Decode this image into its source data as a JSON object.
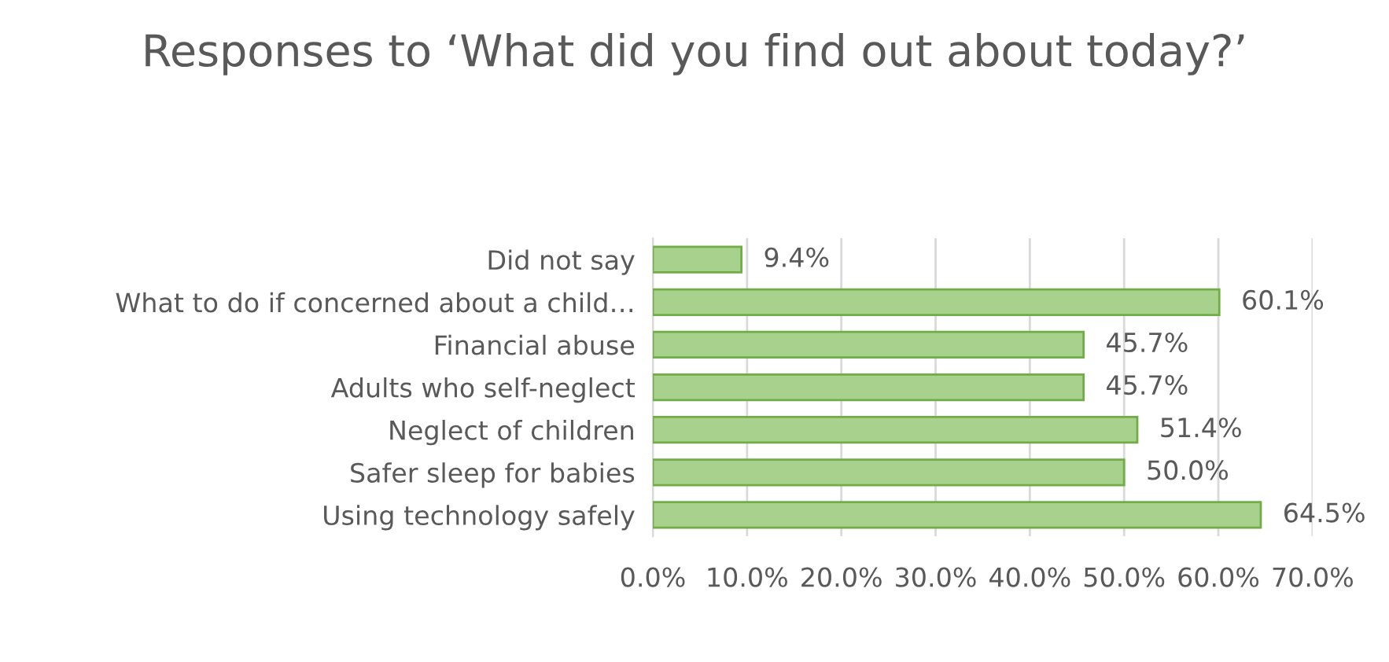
{
  "chart_data": {
    "type": "bar",
    "orientation": "horizontal",
    "title": "Responses to ‘What did you find out about today?’",
    "categories": [
      "Did not say",
      "What to do if concerned about a child…",
      "Financial abuse",
      "Adults who self-neglect",
      "Neglect of children",
      "Safer sleep for babies",
      "Using technology safely"
    ],
    "values": [
      9.4,
      60.1,
      45.7,
      45.7,
      51.4,
      50.0,
      64.5
    ],
    "value_labels": [
      "9.4%",
      "60.1%",
      "45.7%",
      "45.7%",
      "51.4%",
      "50.0%",
      "64.5%"
    ],
    "color": "#a9d18e",
    "xlim": [
      0,
      70
    ],
    "xticks": [
      {
        "value": 0,
        "label": "0.0%"
      },
      {
        "value": 10,
        "label": "10.0%"
      },
      {
        "value": 20,
        "label": "20.0%"
      },
      {
        "value": 30,
        "label": "30.0%"
      },
      {
        "value": 40,
        "label": "40.0%"
      },
      {
        "value": 50,
        "label": "50.0%"
      },
      {
        "value": 60,
        "label": "60.0%"
      },
      {
        "value": 70,
        "label": "70.0%"
      }
    ],
    "grid": "x"
  }
}
